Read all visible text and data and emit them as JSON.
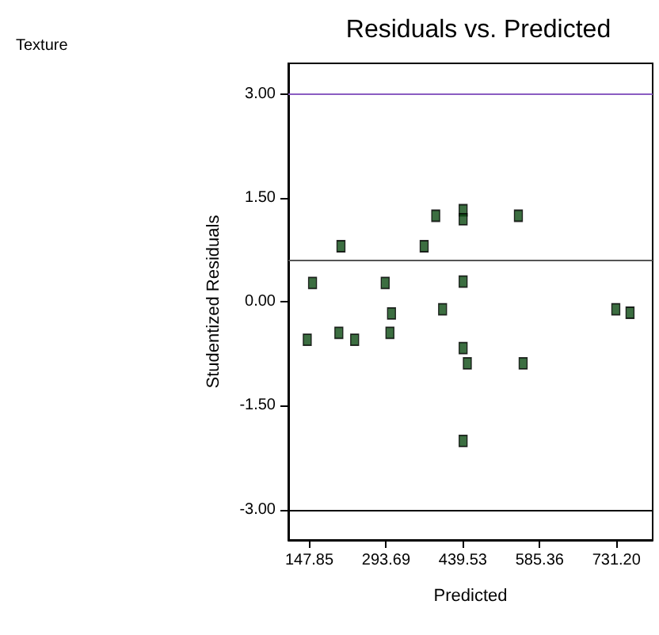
{
  "chart_data": {
    "type": "scatter",
    "title": "Residuals vs. Predicted",
    "xlabel": "Predicted",
    "ylabel": "Studentized Residuals",
    "annotations": [
      "Texture"
    ],
    "x": [
      144,
      154,
      204,
      208,
      234,
      292,
      301,
      304,
      366,
      388,
      401,
      440,
      440,
      440,
      440,
      448,
      440,
      545,
      554,
      730,
      757
    ],
    "series": [
      {
        "color": "#0b4a12",
        "values": [
          -0.55,
          0.27,
          -0.45,
          0.8,
          -0.55,
          0.27,
          -0.45,
          -0.17,
          0.8,
          1.24,
          -0.11,
          1.32,
          1.19,
          0.29,
          -0.67,
          -0.89,
          -2.01,
          1.24,
          -0.89,
          -0.11,
          -0.16
        ]
      }
    ],
    "xlim": [
      108,
      800
    ],
    "ylim": [
      -3.44,
      3.44
    ],
    "xticks": [
      {
        "value": 147.85,
        "label": "147.85"
      },
      {
        "value": 293.69,
        "label": "293.69"
      },
      {
        "value": 439.53,
        "label": "439.53"
      },
      {
        "value": 585.36,
        "label": "585.36"
      },
      {
        "value": 731.2,
        "label": "731.20"
      }
    ],
    "yticks": [
      {
        "value": -3,
        "label": "-3.00"
      },
      {
        "value": -1.5,
        "label": "-1.50"
      },
      {
        "value": 0,
        "label": "0.00"
      },
      {
        "value": 1.5,
        "label": "1.50"
      },
      {
        "value": 3,
        "label": "3.00"
      }
    ],
    "ref_lines": [
      {
        "axis": "y",
        "value": 3,
        "color": "#8a5cc2"
      },
      {
        "axis": "y",
        "value": -3,
        "color": "#000000"
      },
      {
        "axis": "y",
        "value": 0.59,
        "color": "#555555"
      }
    ],
    "marker": "square",
    "grid": false
  }
}
